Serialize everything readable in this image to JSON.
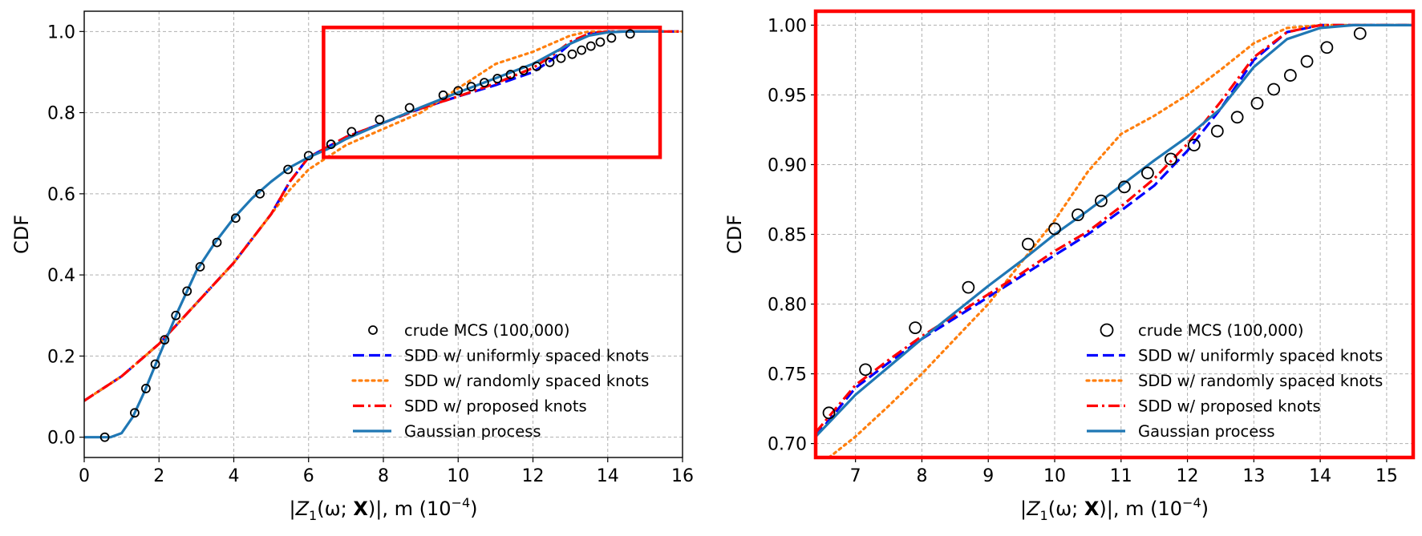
{
  "colors": {
    "mcs": "#000000",
    "uniform": "#0000ff",
    "random": "#ff7f0e",
    "proposed": "#ff0000",
    "gp": "#1f77b4",
    "highlight": "#ff0000"
  },
  "xlabel": {
    "prefix": "|",
    "z": "Z",
    "sub": "1",
    "mid": "(ω; ",
    "bold": "X",
    "end": ")|, m (10",
    "exp": "−4",
    "close": ")"
  },
  "chart_data": [
    {
      "type": "line",
      "panel": "full",
      "ylabel": "CDF",
      "xlim": [
        0,
        16
      ],
      "ylim": [
        -0.05,
        1.05
      ],
      "xticks": [
        0,
        2,
        4,
        6,
        8,
        10,
        12,
        14,
        16
      ],
      "xtick_labels": [
        "0",
        "2",
        "4",
        "6",
        "8",
        "10",
        "12",
        "14",
        "16"
      ],
      "yticks": [
        0.0,
        0.2,
        0.4,
        0.6,
        0.8,
        1.0
      ],
      "ytick_labels": [
        "0.0",
        "0.2",
        "0.4",
        "0.6",
        "0.8",
        "1.0"
      ],
      "grid": true,
      "legend_position": "lower-right",
      "zoom_box": {
        "x": [
          6.4,
          15.4
        ],
        "y": [
          0.69,
          1.01
        ]
      },
      "mcs": {
        "name": "crude MCS (100,000)",
        "x": [
          0.55,
          1.35,
          1.65,
          1.9,
          2.15,
          2.45,
          2.75,
          3.1,
          3.55,
          4.05,
          4.7,
          5.45,
          6.0,
          6.6,
          7.15,
          7.9,
          8.7,
          9.6,
          10.0,
          10.35,
          10.7,
          11.05,
          11.4,
          11.75,
          12.1,
          12.45,
          12.75,
          13.05,
          13.3,
          13.55,
          13.8,
          14.1,
          14.6
        ],
        "y": [
          0.0,
          0.06,
          0.12,
          0.18,
          0.24,
          0.3,
          0.36,
          0.42,
          0.48,
          0.54,
          0.6,
          0.66,
          0.694,
          0.722,
          0.753,
          0.783,
          0.812,
          0.843,
          0.854,
          0.864,
          0.874,
          0.884,
          0.894,
          0.904,
          0.914,
          0.924,
          0.934,
          0.944,
          0.954,
          0.964,
          0.974,
          0.984,
          0.994
        ]
      },
      "series": [
        {
          "name": "SDD w/ uniformly spaced knots",
          "style": "dashed",
          "color_key": "uniform",
          "x": [
            0,
            1,
            2,
            3,
            4,
            5,
            5.5,
            6,
            6.5,
            7,
            8,
            9,
            10,
            11,
            12,
            12.5,
            13,
            13.5,
            14,
            14.5,
            15,
            16
          ],
          "y": [
            0.09,
            0.15,
            0.23,
            0.33,
            0.43,
            0.55,
            0.63,
            0.69,
            0.715,
            0.74,
            0.775,
            0.81,
            0.84,
            0.868,
            0.9,
            0.93,
            0.97,
            0.995,
            1.0,
            1.0,
            1.0,
            1.0
          ]
        },
        {
          "name": "SDD w/ randomly spaced knots",
          "style": "dotted",
          "color_key": "random",
          "x": [
            0,
            1,
            2,
            3,
            4,
            5,
            5.5,
            6,
            6.5,
            7,
            8,
            9,
            10,
            11,
            12,
            12.5,
            13,
            13.5,
            14,
            14.5,
            15,
            16
          ],
          "y": [
            0.09,
            0.15,
            0.23,
            0.33,
            0.43,
            0.55,
            0.61,
            0.66,
            0.69,
            0.72,
            0.76,
            0.8,
            0.86,
            0.92,
            0.95,
            0.97,
            0.99,
            1.0,
            1.0,
            1.0,
            1.0,
            1.0
          ]
        },
        {
          "name": "SDD w/ proposed knots",
          "style": "dashdot",
          "color_key": "proposed",
          "x": [
            0,
            1,
            2,
            3,
            4,
            5,
            5.5,
            6,
            6.5,
            7,
            8,
            9,
            10,
            11,
            12,
            12.5,
            13,
            13.5,
            14,
            14.5,
            15,
            16
          ],
          "y": [
            0.09,
            0.15,
            0.23,
            0.33,
            0.43,
            0.55,
            0.63,
            0.69,
            0.715,
            0.74,
            0.775,
            0.81,
            0.84,
            0.872,
            0.91,
            0.94,
            0.975,
            0.995,
            1.0,
            1.0,
            1.0,
            1.0
          ]
        },
        {
          "name": "Gaussian process",
          "style": "solid",
          "color_key": "gp",
          "x": [
            0,
            0.7,
            1.0,
            1.3,
            1.6,
            2.0,
            2.5,
            3.0,
            3.5,
            4.0,
            4.5,
            5.0,
            5.5,
            6.0,
            6.5,
            7.0,
            8.0,
            9.0,
            10.0,
            11.0,
            12.0,
            12.5,
            13.0,
            13.5,
            14.0,
            14.5,
            15.0,
            15.5
          ],
          "y": [
            0.0,
            0.0,
            0.01,
            0.05,
            0.11,
            0.2,
            0.31,
            0.41,
            0.48,
            0.54,
            0.59,
            0.63,
            0.665,
            0.69,
            0.71,
            0.735,
            0.775,
            0.813,
            0.85,
            0.885,
            0.92,
            0.945,
            0.97,
            0.99,
            0.998,
            1.0,
            1.0,
            1.0
          ]
        }
      ]
    },
    {
      "type": "line",
      "panel": "zoom",
      "ylabel": "CDF",
      "xlim": [
        6.4,
        15.4
      ],
      "ylim": [
        0.69,
        1.01
      ],
      "xticks": [
        7,
        8,
        9,
        10,
        11,
        12,
        13,
        14,
        15
      ],
      "xtick_labels": [
        "7",
        "8",
        "9",
        "10",
        "11",
        "12",
        "13",
        "14",
        "15"
      ],
      "yticks": [
        0.7,
        0.75,
        0.8,
        0.85,
        0.9,
        0.95,
        1.0
      ],
      "ytick_labels": [
        "0.70",
        "0.75",
        "0.80",
        "0.85",
        "0.90",
        "0.95",
        "1.00"
      ],
      "grid": true,
      "legend_position": "lower-right",
      "mcs": {
        "name": "crude MCS (100,000)",
        "x": [
          6.6,
          7.15,
          7.9,
          8.7,
          9.6,
          10.0,
          10.35,
          10.7,
          11.05,
          11.4,
          11.75,
          12.1,
          12.45,
          12.75,
          13.05,
          13.3,
          13.55,
          13.8,
          14.1,
          14.6
        ],
        "y": [
          0.722,
          0.753,
          0.783,
          0.812,
          0.843,
          0.854,
          0.864,
          0.874,
          0.884,
          0.894,
          0.904,
          0.914,
          0.924,
          0.934,
          0.944,
          0.954,
          0.964,
          0.974,
          0.984,
          0.994
        ]
      },
      "series": [
        {
          "name": "SDD w/ uniformly spaced knots",
          "style": "dashed",
          "color_key": "uniform",
          "x": [
            6.4,
            7.0,
            7.5,
            8.0,
            8.5,
            9.0,
            9.5,
            10.0,
            10.5,
            11.0,
            11.5,
            12.0,
            12.5,
            13.0,
            13.5,
            14.0,
            14.5,
            15.0,
            15.4
          ],
          "y": [
            0.705,
            0.74,
            0.758,
            0.775,
            0.79,
            0.805,
            0.82,
            0.835,
            0.85,
            0.867,
            0.885,
            0.91,
            0.94,
            0.975,
            0.995,
            1.0,
            1.0,
            1.0,
            1.0
          ]
        },
        {
          "name": "SDD w/ randomly spaced knots",
          "style": "dotted",
          "color_key": "random",
          "x": [
            6.4,
            6.6,
            7.0,
            7.5,
            8.0,
            8.5,
            9.0,
            9.5,
            10.0,
            10.5,
            11.0,
            11.5,
            12.0,
            12.5,
            13.0,
            13.5,
            14.0,
            14.5,
            15.0,
            15.4
          ],
          "y": [
            0.68,
            0.69,
            0.705,
            0.727,
            0.75,
            0.775,
            0.8,
            0.83,
            0.86,
            0.895,
            0.922,
            0.935,
            0.95,
            0.968,
            0.987,
            0.998,
            1.0,
            1.0,
            1.0,
            1.0
          ]
        },
        {
          "name": "SDD w/ proposed knots",
          "style": "dashdot",
          "color_key": "proposed",
          "x": [
            6.4,
            7.0,
            7.5,
            8.0,
            8.5,
            9.0,
            9.5,
            10.0,
            10.5,
            11.0,
            11.5,
            12.0,
            12.5,
            13.0,
            13.5,
            14.0,
            14.5,
            15.0,
            15.4
          ],
          "y": [
            0.708,
            0.742,
            0.76,
            0.777,
            0.792,
            0.807,
            0.822,
            0.838,
            0.852,
            0.87,
            0.89,
            0.915,
            0.945,
            0.977,
            0.995,
            1.0,
            1.0,
            1.0,
            1.0
          ]
        },
        {
          "name": "Gaussian process",
          "style": "solid",
          "color_key": "gp",
          "x": [
            6.4,
            7.0,
            7.5,
            8.0,
            8.5,
            9.0,
            9.5,
            10.0,
            10.5,
            11.0,
            11.5,
            12.0,
            12.5,
            13.0,
            13.5,
            14.0,
            14.5,
            15.0,
            15.4
          ],
          "y": [
            0.705,
            0.735,
            0.755,
            0.775,
            0.794,
            0.813,
            0.831,
            0.85,
            0.867,
            0.885,
            0.903,
            0.92,
            0.94,
            0.97,
            0.99,
            0.998,
            1.0,
            1.0,
            1.0
          ]
        }
      ]
    }
  ]
}
